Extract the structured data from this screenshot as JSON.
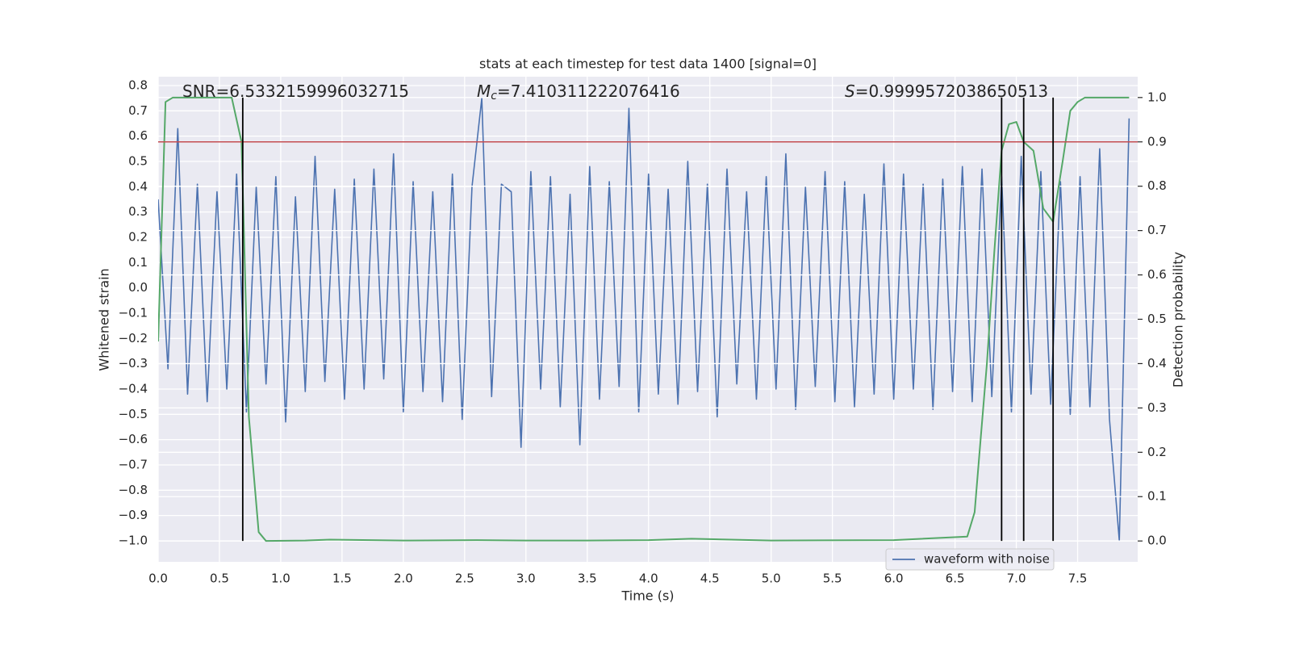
{
  "chart_data": {
    "type": "line",
    "title": "stats at each timestep for test data 1400 [signal=0]",
    "xlabel": "Time (s)",
    "ylabel": "Whitened strain",
    "y2label": "Detection probability",
    "xlim": [
      0,
      7.99
    ],
    "ylim": [
      -1.083,
      0.835
    ],
    "y2lim": [
      -0.047,
      1.047
    ],
    "xticks": [
      {
        "value": 0,
        "label": "0.0"
      },
      0.5,
      {
        "value": 1,
        "label": "1.0"
      },
      1.5,
      {
        "value": 2,
        "label": "2.0"
      },
      2.5,
      {
        "value": 3,
        "label": "3.0"
      },
      3.5,
      {
        "value": 4,
        "label": "4.0"
      },
      4.5,
      {
        "value": 5,
        "label": "5.0"
      },
      5.5,
      {
        "value": 6,
        "label": "6.0"
      },
      6.5,
      {
        "value": 7,
        "label": "7.0"
      },
      7.5
    ],
    "yticks": [
      {
        "value": -1.0,
        "label": "−1.0"
      },
      {
        "value": -0.9,
        "label": "−0.9"
      },
      {
        "value": -0.8,
        "label": "−0.8"
      },
      {
        "value": -0.7,
        "label": "−0.7"
      },
      {
        "value": -0.6,
        "label": "−0.6"
      },
      {
        "value": -0.5,
        "label": "−0.5"
      },
      {
        "value": -0.4,
        "label": "−0.4"
      },
      {
        "value": -0.3,
        "label": "−0.3"
      },
      {
        "value": -0.2,
        "label": "−0.2"
      },
      {
        "value": -0.1,
        "label": "−0.1"
      },
      {
        "value": 0,
        "label": "0.0"
      },
      0.1,
      0.2,
      0.3,
      0.4,
      0.5,
      0.6,
      0.7,
      0.8
    ],
    "y2ticks": [
      {
        "value": 0,
        "label": "0.0"
      },
      0.1,
      0.2,
      0.3,
      0.4,
      0.5,
      0.6,
      0.7,
      0.8,
      0.9,
      {
        "value": 1,
        "label": "1.0"
      }
    ],
    "grid": true,
    "legend": "lower right",
    "series": [
      {
        "name": "waveform with noise",
        "color": "#4c72b0",
        "x": [
          0,
          0.08,
          0.16,
          0.24,
          0.32,
          0.4,
          0.48,
          0.56,
          0.64,
          0.72,
          0.8,
          0.88,
          0.96,
          1.04,
          1.12,
          1.2,
          1.28,
          1.36,
          1.44,
          1.52,
          1.6,
          1.68,
          1.76,
          1.84,
          1.92,
          2.0,
          2.08,
          2.16,
          2.24,
          2.32,
          2.4,
          2.48,
          2.56,
          2.64,
          2.72,
          2.8,
          2.88,
          2.96,
          3.04,
          3.12,
          3.2,
          3.28,
          3.36,
          3.44,
          3.52,
          3.6,
          3.68,
          3.76,
          3.84,
          3.92,
          4.0,
          4.08,
          4.16,
          4.24,
          4.32,
          4.4,
          4.48,
          4.56,
          4.64,
          4.72,
          4.8,
          4.88,
          4.96,
          5.04,
          5.12,
          5.2,
          5.28,
          5.36,
          5.44,
          5.52,
          5.6,
          5.68,
          5.76,
          5.84,
          5.92,
          6.0,
          6.08,
          6.16,
          6.24,
          6.32,
          6.4,
          6.48,
          6.56,
          6.64,
          6.72,
          6.8,
          6.88,
          6.96,
          7.04,
          7.12,
          7.2,
          7.28,
          7.36,
          7.44,
          7.52,
          7.6,
          7.68,
          7.76,
          7.84,
          7.92
        ],
        "values": [
          0.35,
          -0.32,
          0.63,
          -0.42,
          0.41,
          -0.45,
          0.38,
          -0.4,
          0.45,
          -0.49,
          0.4,
          -0.38,
          0.44,
          -0.53,
          0.36,
          -0.41,
          0.52,
          -0.37,
          0.39,
          -0.44,
          0.43,
          -0.4,
          0.47,
          -0.36,
          0.53,
          -0.49,
          0.42,
          -0.41,
          0.38,
          -0.45,
          0.45,
          -0.52,
          0.4,
          0.75,
          -0.43,
          0.41,
          0.38,
          -0.63,
          0.46,
          -0.4,
          0.44,
          -0.47,
          0.37,
          -0.62,
          0.48,
          -0.44,
          0.42,
          -0.39,
          0.71,
          -0.49,
          0.45,
          -0.42,
          0.39,
          -0.46,
          0.5,
          -0.41,
          0.41,
          -0.51,
          0.47,
          -0.38,
          0.38,
          -0.44,
          0.44,
          -0.4,
          0.53,
          -0.48,
          0.4,
          -0.39,
          0.46,
          -0.45,
          0.42,
          -0.47,
          0.37,
          -0.42,
          0.49,
          -0.44,
          0.45,
          -0.4,
          0.41,
          -0.48,
          0.43,
          -0.41,
          0.48,
          -0.45,
          0.47,
          -0.43,
          0.44,
          -0.49,
          0.52,
          -0.42,
          0.46,
          -0.46,
          0.42,
          -0.5,
          0.44,
          -0.47,
          0.55,
          -0.52,
          -1.0,
          0.67
        ]
      },
      {
        "color": "#55a868",
        "axis": "y2",
        "x": [
          0,
          0.06,
          0.12,
          0.3,
          0.45,
          0.6,
          0.68,
          0.74,
          0.82,
          0.88,
          1.2,
          1.4,
          2.0,
          2.6,
          3.0,
          3.5,
          4.0,
          4.35,
          5.0,
          6.0,
          6.6,
          6.66,
          6.7,
          6.76,
          6.82,
          6.88,
          6.94,
          7.0,
          7.06,
          7.14,
          7.22,
          7.3,
          7.38,
          7.44,
          7.5,
          7.56,
          7.6,
          7.92
        ],
        "values": [
          0.45,
          0.99,
          1.0,
          1.0,
          1.0,
          1.0,
          0.9,
          0.28,
          0.02,
          0.0,
          0.001,
          0.003,
          0.001,
          0.002,
          0.001,
          0.001,
          0.002,
          0.005,
          0.001,
          0.002,
          0.01,
          0.065,
          0.2,
          0.4,
          0.65,
          0.88,
          0.94,
          0.945,
          0.9,
          0.88,
          0.75,
          0.72,
          0.86,
          0.97,
          0.99,
          1.0,
          1.0,
          1.0
        ]
      }
    ],
    "threshold": {
      "value": 0.9,
      "axis": "y2",
      "color": "#c44e52"
    },
    "vlines": {
      "x": [
        0.69,
        6.88,
        7.06,
        7.3
      ],
      "ymin": 0,
      "ymax": 1,
      "axis": "y2",
      "color": "#000000"
    },
    "annotations": [
      {
        "text": "SNR=6.5332159996032715"
      },
      {
        "symbol": "M",
        "subscript": "c",
        "text": "=7.410311222076416"
      },
      {
        "symbol": "S",
        "text": "=0.9999572038650513"
      }
    ]
  }
}
